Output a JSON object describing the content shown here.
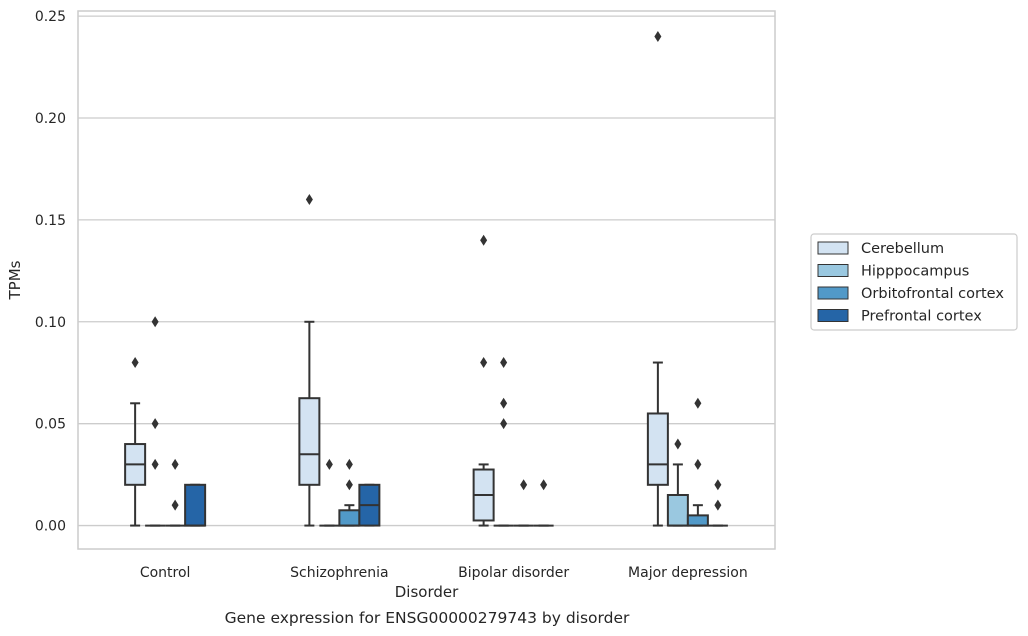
{
  "chart_data": {
    "type": "box",
    "title": "",
    "caption": "Gene expression for ENSG00000279743 by disorder",
    "xlabel": "Disorder",
    "ylabel": "TPMs",
    "ylim": [
      -0.0115,
      0.2525
    ],
    "yticks": [
      0.0,
      0.05,
      0.1,
      0.15,
      0.2,
      0.25
    ],
    "ytick_labels": [
      "0.00",
      "0.05",
      "0.10",
      "0.15",
      "0.20",
      "0.25"
    ],
    "grid": "horizontal",
    "legend_position": "right",
    "categories": [
      "Control",
      "Schizophrenia",
      "Bipolar disorder",
      "Major depression"
    ],
    "series": [
      {
        "name": "Cerebellum",
        "color": "#d3e3f2",
        "boxes": [
          {
            "whisker_low": 0.0,
            "q1": 0.02,
            "median": 0.03,
            "q3": 0.04,
            "whisker_high": 0.06,
            "outliers": [
              0.08
            ]
          },
          {
            "whisker_low": 0.0,
            "q1": 0.02,
            "median": 0.035,
            "q3": 0.0625,
            "whisker_high": 0.1,
            "outliers": [
              0.16
            ]
          },
          {
            "whisker_low": 0.0,
            "q1": 0.0025,
            "median": 0.015,
            "q3": 0.0275,
            "whisker_high": 0.03,
            "outliers": [
              0.08,
              0.14
            ]
          },
          {
            "whisker_low": 0.0,
            "q1": 0.02,
            "median": 0.03,
            "q3": 0.055,
            "whisker_high": 0.08,
            "outliers": [
              0.24
            ]
          }
        ]
      },
      {
        "name": "Hipppocampus",
        "color": "#9ac8e0",
        "boxes": [
          {
            "whisker_low": 0.0,
            "q1": 0.0,
            "median": 0.0,
            "q3": 0.0,
            "whisker_high": 0.0,
            "outliers": [
              0.03,
              0.05,
              0.1
            ]
          },
          {
            "whisker_low": 0.0,
            "q1": 0.0,
            "median": 0.0,
            "q3": 0.0,
            "whisker_high": 0.0,
            "outliers": [
              0.03
            ]
          },
          {
            "whisker_low": 0.0,
            "q1": 0.0,
            "median": 0.0,
            "q3": 0.0,
            "whisker_high": 0.0,
            "outliers": [
              0.05,
              0.06,
              0.08
            ]
          },
          {
            "whisker_low": 0.0,
            "q1": 0.0,
            "median": 0.0,
            "q3": 0.015,
            "whisker_high": 0.03,
            "outliers": [
              0.04
            ]
          }
        ]
      },
      {
        "name": "Orbitofrontal cortex",
        "color": "#5199c8",
        "boxes": [
          {
            "whisker_low": 0.0,
            "q1": 0.0,
            "median": 0.0,
            "q3": 0.0,
            "whisker_high": 0.0,
            "outliers": [
              0.01,
              0.03
            ]
          },
          {
            "whisker_low": 0.0,
            "q1": 0.0,
            "median": 0.0,
            "q3": 0.0075,
            "whisker_high": 0.01,
            "outliers": [
              0.02,
              0.03
            ]
          },
          {
            "whisker_low": 0.0,
            "q1": 0.0,
            "median": 0.0,
            "q3": 0.0,
            "whisker_high": 0.0,
            "outliers": [
              0.02
            ]
          },
          {
            "whisker_low": 0.0,
            "q1": 0.0,
            "median": 0.0,
            "q3": 0.005,
            "whisker_high": 0.01,
            "outliers": [
              0.03,
              0.06
            ]
          }
        ]
      },
      {
        "name": "Prefrontal cortex",
        "color": "#2565a7",
        "boxes": [
          {
            "whisker_low": 0.0,
            "q1": 0.0,
            "median": 0.0,
            "q3": 0.02,
            "whisker_high": 0.02,
            "outliers": []
          },
          {
            "whisker_low": 0.0,
            "q1": 0.0,
            "median": 0.01,
            "q3": 0.02,
            "whisker_high": 0.02,
            "outliers": []
          },
          {
            "whisker_low": 0.0,
            "q1": 0.0,
            "median": 0.0,
            "q3": 0.0,
            "whisker_high": 0.0,
            "outliers": [
              0.02
            ]
          },
          {
            "whisker_low": 0.0,
            "q1": 0.0,
            "median": 0.0,
            "q3": 0.0,
            "whisker_high": 0.0,
            "outliers": [
              0.01,
              0.02
            ]
          }
        ]
      }
    ]
  }
}
